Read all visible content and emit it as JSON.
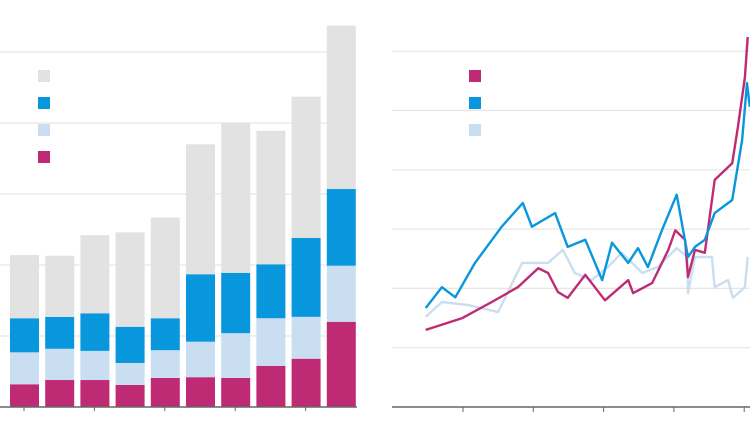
{
  "colors": {
    "gray": "#e2e2e2",
    "blue": "#0897dc",
    "light_blue": "#c9dff1",
    "magenta": "#bf2a74",
    "grid": "#e6e6e6",
    "axis": "#666666"
  },
  "chart_data": [
    {
      "type": "bar",
      "stacked": true,
      "title": "",
      "xlabel": "",
      "ylabel": "",
      "ylim": [
        0,
        5.4
      ],
      "grid": true,
      "legend": "top-left",
      "categories": [
        "",
        "",
        "",
        "",
        "",
        "",
        "",
        "",
        "",
        ""
      ],
      "series": [
        {
          "color": "#bf2a74",
          "values": [
            0.32,
            0.38,
            0.38,
            0.31,
            0.41,
            0.42,
            0.41,
            0.58,
            0.68,
            1.2
          ]
        },
        {
          "color": "#c9dff1",
          "values": [
            0.45,
            0.44,
            0.41,
            0.31,
            0.39,
            0.5,
            0.63,
            0.67,
            0.59,
            0.79
          ]
        },
        {
          "color": "#0897dc",
          "values": [
            0.48,
            0.45,
            0.53,
            0.51,
            0.45,
            0.95,
            0.85,
            0.76,
            1.11,
            1.08
          ]
        },
        {
          "color": "#e2e2e2",
          "values": [
            0.89,
            0.86,
            1.1,
            1.33,
            1.42,
            1.83,
            2.11,
            1.88,
            1.99,
            2.3
          ]
        }
      ],
      "legend_order": [
        "#e2e2e2",
        "#0897dc",
        "#c9dff1",
        "#bf2a74"
      ]
    },
    {
      "type": "line",
      "title": "",
      "xlabel": "",
      "ylabel": "",
      "xlim": [
        -1,
        4.1
      ],
      "ylim": [
        0,
        6.3
      ],
      "grid": true,
      "legend": "top-left",
      "series": [
        {
          "color": "#c9dff1",
          "points": [
            [
              -0.53,
              1.52
            ],
            [
              -0.3,
              1.77
            ],
            [
              0.07,
              1.72
            ],
            [
              0.5,
              1.6
            ],
            [
              0.84,
              2.43
            ],
            [
              1.21,
              2.43
            ],
            [
              1.42,
              2.65
            ],
            [
              1.59,
              2.26
            ],
            [
              1.83,
              2.14
            ],
            [
              2.06,
              2.36
            ],
            [
              2.26,
              2.6
            ],
            [
              2.55,
              2.26
            ],
            [
              2.77,
              2.36
            ],
            [
              3.04,
              2.68
            ],
            [
              3.19,
              2.53
            ],
            [
              3.2,
              1.92
            ],
            [
              3.3,
              2.53
            ],
            [
              3.54,
              2.53
            ],
            [
              3.58,
              2.02
            ],
            [
              3.77,
              2.14
            ],
            [
              3.84,
              1.84
            ],
            [
              4.01,
              2.02
            ],
            [
              4.05,
              2.53
            ]
          ]
        },
        {
          "color": "#bf2a74",
          "points": [
            [
              -0.53,
              1.3
            ],
            [
              -0.01,
              1.5
            ],
            [
              0.41,
              1.77
            ],
            [
              0.78,
              2.02
            ],
            [
              1.07,
              2.34
            ],
            [
              1.21,
              2.26
            ],
            [
              1.35,
              1.94
            ],
            [
              1.49,
              1.84
            ],
            [
              1.74,
              2.23
            ],
            [
              2.02,
              1.8
            ],
            [
              2.35,
              2.14
            ],
            [
              2.42,
              1.92
            ],
            [
              2.69,
              2.09
            ],
            [
              2.92,
              2.65
            ],
            [
              3.02,
              2.98
            ],
            [
              3.16,
              2.82
            ],
            [
              3.2,
              2.19
            ],
            [
              3.3,
              2.65
            ],
            [
              3.44,
              2.6
            ],
            [
              3.58,
              3.83
            ],
            [
              3.83,
              4.11
            ],
            [
              3.91,
              4.72
            ],
            [
              4.01,
              5.56
            ],
            [
              4.05,
              6.24
            ]
          ]
        },
        {
          "color": "#0897dc",
          "points": [
            [
              -0.53,
              1.67
            ],
            [
              -0.3,
              2.02
            ],
            [
              -0.11,
              1.85
            ],
            [
              0.17,
              2.43
            ],
            [
              0.55,
              3.04
            ],
            [
              0.85,
              3.44
            ],
            [
              0.98,
              3.04
            ],
            [
              1.31,
              3.27
            ],
            [
              1.49,
              2.7
            ],
            [
              1.74,
              2.82
            ],
            [
              1.98,
              2.14
            ],
            [
              2.12,
              2.77
            ],
            [
              2.35,
              2.43
            ],
            [
              2.49,
              2.68
            ],
            [
              2.63,
              2.36
            ],
            [
              2.83,
              2.98
            ],
            [
              3.04,
              3.58
            ],
            [
              3.2,
              2.53
            ],
            [
              3.3,
              2.7
            ],
            [
              3.44,
              2.82
            ],
            [
              3.58,
              3.27
            ],
            [
              3.83,
              3.49
            ],
            [
              3.97,
              4.5
            ],
            [
              4.04,
              5.46
            ],
            [
              4.08,
              5.06
            ]
          ]
        }
      ],
      "legend_order": [
        "#bf2a74",
        "#0897dc",
        "#c9dff1"
      ]
    }
  ]
}
